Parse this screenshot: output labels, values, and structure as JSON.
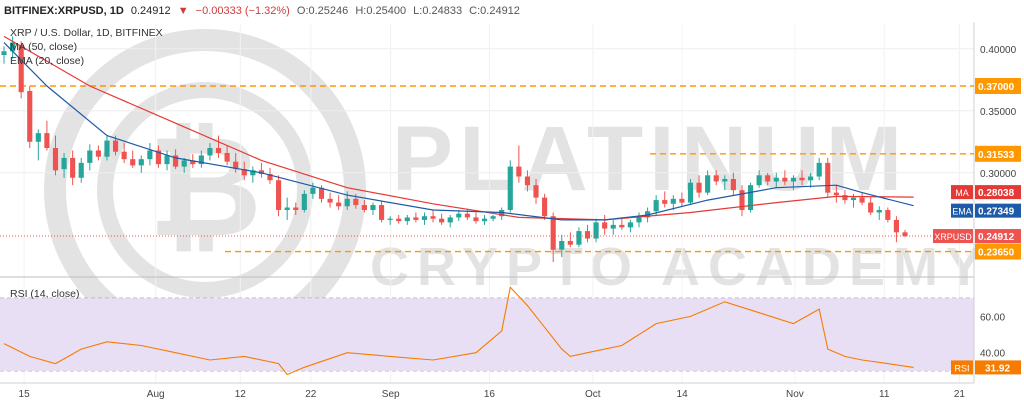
{
  "header": {
    "symbol": "BITFINEX:XRPUSD, 1D",
    "price": "0.24912",
    "arrow": "▼",
    "change": "−0.00333 (−1.32%)",
    "o": "O:0.25246",
    "h": "H:0.25400",
    "l": "L:0.24833",
    "c": "C:0.24912"
  },
  "legend": {
    "title": "XRP / U.S. Dollar, 1D, BITFINEX",
    "ma": "MA (50, close)",
    "ema": "EMA (20, close)",
    "rsi": "RSI (14, close)"
  },
  "watermark": {
    "line1": "PLATINUM",
    "line2": "CRYPTO ACADEMY",
    "logo_glyph": "₿"
  },
  "colors": {
    "up": "#26a69a",
    "down": "#ef5350",
    "ma": "#e53935",
    "ema": "#1e5aa8",
    "rsi": "#f57c00",
    "level": "#ff9800",
    "price_tag": "#ef5350",
    "rsi_band": "#e9dff5"
  },
  "chart_data": [
    {
      "type": "candlestick",
      "title": "XRP / U.S. Dollar, 1D, BITFINEX",
      "ylim": [
        0.22,
        0.42
      ],
      "y_ticks": [
        "0.40000",
        "0.35000",
        "0.30000"
      ],
      "x_ticks": [
        "15",
        "Aug",
        "12",
        "22",
        "Sep",
        "16",
        "Oct",
        "14",
        "Nov",
        "11",
        "21"
      ],
      "candles": [
        [
          0.395,
          0.402,
          0.388,
          0.398
        ],
        [
          0.398,
          0.41,
          0.392,
          0.405
        ],
        [
          0.403,
          0.406,
          0.36,
          0.365
        ],
        [
          0.366,
          0.37,
          0.32,
          0.325
        ],
        [
          0.325,
          0.335,
          0.31,
          0.332
        ],
        [
          0.332,
          0.342,
          0.318,
          0.32
        ],
        [
          0.32,
          0.33,
          0.298,
          0.302
        ],
        [
          0.303,
          0.316,
          0.296,
          0.312
        ],
        [
          0.312,
          0.318,
          0.29,
          0.296
        ],
        [
          0.296,
          0.312,
          0.292,
          0.308
        ],
        [
          0.308,
          0.323,
          0.302,
          0.318
        ],
        [
          0.318,
          0.322,
          0.31,
          0.313
        ],
        [
          0.313,
          0.33,
          0.31,
          0.326
        ],
        [
          0.326,
          0.33,
          0.314,
          0.317
        ],
        [
          0.317,
          0.324,
          0.308,
          0.311
        ],
        [
          0.311,
          0.318,
          0.304,
          0.306
        ],
        [
          0.306,
          0.314,
          0.3,
          0.311
        ],
        [
          0.311,
          0.324,
          0.306,
          0.318
        ],
        [
          0.318,
          0.322,
          0.304,
          0.307
        ],
        [
          0.307,
          0.318,
          0.302,
          0.314
        ],
        [
          0.314,
          0.319,
          0.303,
          0.305
        ],
        [
          0.305,
          0.312,
          0.3,
          0.31
        ],
        [
          0.31,
          0.315,
          0.304,
          0.307
        ],
        [
          0.307,
          0.318,
          0.304,
          0.314
        ],
        [
          0.314,
          0.324,
          0.31,
          0.32
        ],
        [
          0.32,
          0.33,
          0.312,
          0.316
        ],
        [
          0.316,
          0.322,
          0.306,
          0.309
        ],
        [
          0.309,
          0.316,
          0.3,
          0.303
        ],
        [
          0.303,
          0.309,
          0.294,
          0.298
        ],
        [
          0.298,
          0.305,
          0.292,
          0.302
        ],
        [
          0.302,
          0.308,
          0.296,
          0.299
        ],
        [
          0.299,
          0.304,
          0.291,
          0.294
        ],
        [
          0.294,
          0.298,
          0.265,
          0.27
        ],
        [
          0.27,
          0.28,
          0.262,
          0.272
        ],
        [
          0.272,
          0.276,
          0.266,
          0.27
        ],
        [
          0.27,
          0.286,
          0.268,
          0.283
        ],
        [
          0.283,
          0.292,
          0.279,
          0.288
        ],
        [
          0.288,
          0.29,
          0.276,
          0.279
        ],
        [
          0.279,
          0.284,
          0.272,
          0.276
        ],
        [
          0.276,
          0.282,
          0.27,
          0.273
        ],
        [
          0.273,
          0.285,
          0.27,
          0.279
        ],
        [
          0.279,
          0.283,
          0.271,
          0.274
        ],
        [
          0.274,
          0.278,
          0.268,
          0.27
        ],
        [
          0.27,
          0.276,
          0.266,
          0.274
        ],
        [
          0.274,
          0.277,
          0.26,
          0.262
        ],
        [
          0.262,
          0.265,
          0.258,
          0.263
        ],
        [
          0.263,
          0.266,
          0.259,
          0.261
        ],
        [
          0.261,
          0.266,
          0.258,
          0.264
        ],
        [
          0.264,
          0.268,
          0.26,
          0.262
        ],
        [
          0.262,
          0.268,
          0.258,
          0.265
        ],
        [
          0.265,
          0.27,
          0.26,
          0.263
        ],
        [
          0.263,
          0.267,
          0.258,
          0.26
        ],
        [
          0.26,
          0.266,
          0.256,
          0.264
        ],
        [
          0.264,
          0.27,
          0.261,
          0.267
        ],
        [
          0.267,
          0.271,
          0.262,
          0.264
        ],
        [
          0.264,
          0.268,
          0.259,
          0.261
        ],
        [
          0.261,
          0.266,
          0.258,
          0.263
        ],
        [
          0.263,
          0.266,
          0.261,
          0.265
        ],
        [
          0.265,
          0.272,
          0.262,
          0.27
        ],
        [
          0.27,
          0.31,
          0.268,
          0.305
        ],
        [
          0.305,
          0.322,
          0.292,
          0.297
        ],
        [
          0.297,
          0.302,
          0.285,
          0.29
        ],
        [
          0.29,
          0.295,
          0.275,
          0.28
        ],
        [
          0.28,
          0.283,
          0.262,
          0.265
        ],
        [
          0.265,
          0.268,
          0.228,
          0.238
        ],
        [
          0.238,
          0.25,
          0.232,
          0.245
        ],
        [
          0.245,
          0.252,
          0.24,
          0.242
        ],
        [
          0.242,
          0.256,
          0.24,
          0.253
        ],
        [
          0.253,
          0.258,
          0.244,
          0.247
        ],
        [
          0.247,
          0.263,
          0.244,
          0.26
        ],
        [
          0.26,
          0.266,
          0.25,
          0.255
        ],
        [
          0.255,
          0.262,
          0.25,
          0.258
        ],
        [
          0.258,
          0.264,
          0.254,
          0.256
        ],
        [
          0.256,
          0.262,
          0.252,
          0.26
        ],
        [
          0.26,
          0.268,
          0.256,
          0.264
        ],
        [
          0.264,
          0.272,
          0.26,
          0.269
        ],
        [
          0.269,
          0.282,
          0.266,
          0.278
        ],
        [
          0.278,
          0.285,
          0.272,
          0.275
        ],
        [
          0.275,
          0.282,
          0.27,
          0.279
        ],
        [
          0.279,
          0.284,
          0.273,
          0.276
        ],
        [
          0.276,
          0.295,
          0.274,
          0.292
        ],
        [
          0.292,
          0.298,
          0.28,
          0.284
        ],
        [
          0.284,
          0.302,
          0.282,
          0.298
        ],
        [
          0.298,
          0.302,
          0.29,
          0.293
        ],
        [
          0.293,
          0.298,
          0.286,
          0.295
        ],
        [
          0.295,
          0.3,
          0.282,
          0.286
        ],
        [
          0.286,
          0.29,
          0.265,
          0.27
        ],
        [
          0.27,
          0.292,
          0.268,
          0.29
        ],
        [
          0.29,
          0.302,
          0.288,
          0.298
        ],
        [
          0.298,
          0.3,
          0.29,
          0.293
        ],
        [
          0.293,
          0.3,
          0.288,
          0.296
        ],
        [
          0.296,
          0.302,
          0.29,
          0.293
        ],
        [
          0.293,
          0.298,
          0.286,
          0.296
        ],
        [
          0.296,
          0.302,
          0.29,
          0.294
        ],
        [
          0.294,
          0.3,
          0.288,
          0.297
        ],
        [
          0.297,
          0.312,
          0.294,
          0.308
        ],
        [
          0.308,
          0.312,
          0.28,
          0.284
        ],
        [
          0.284,
          0.29,
          0.276,
          0.282
        ],
        [
          0.282,
          0.286,
          0.275,
          0.278
        ],
        [
          0.278,
          0.283,
          0.272,
          0.28
        ],
        [
          0.28,
          0.284,
          0.274,
          0.276
        ],
        [
          0.276,
          0.28,
          0.266,
          0.268
        ],
        [
          0.268,
          0.273,
          0.262,
          0.27
        ],
        [
          0.27,
          0.272,
          0.26,
          0.262
        ],
        [
          0.262,
          0.265,
          0.244,
          0.252
        ],
        [
          0.252,
          0.254,
          0.248,
          0.249
        ]
      ],
      "series": [
        {
          "name": "MA (50, close)",
          "x": [
            0,
            10,
            20,
            30,
            40,
            50,
            60,
            70,
            80,
            90,
            97,
            106
          ],
          "values": [
            0.41,
            0.37,
            0.34,
            0.31,
            0.288,
            0.275,
            0.264,
            0.262,
            0.268,
            0.276,
            0.281,
            0.2804
          ]
        },
        {
          "name": "EMA (20, close)",
          "x": [
            0,
            5,
            12,
            20,
            30,
            40,
            50,
            58,
            65,
            70,
            75,
            82,
            90,
            97,
            100,
            106
          ],
          "values": [
            0.405,
            0.37,
            0.33,
            0.312,
            0.3,
            0.282,
            0.27,
            0.268,
            0.262,
            0.262,
            0.266,
            0.278,
            0.288,
            0.29,
            0.284,
            0.2735
          ]
        }
      ],
      "levels": [
        {
          "label": "0.37000",
          "y": 0.37
        },
        {
          "label": "0.31533",
          "y": 0.31533
        },
        {
          "label": "0.23650",
          "y": 0.2365
        }
      ],
      "price_labels": [
        {
          "name": "MA",
          "value": "0.28038"
        },
        {
          "name": "EMA",
          "value": "0.27349"
        },
        {
          "name": "XRPUSD",
          "value": "0.24912"
        }
      ]
    },
    {
      "type": "line",
      "title": "RSI (14, close)",
      "ylim": [
        25,
        80
      ],
      "y_ticks": [
        "60.00",
        "40.00"
      ],
      "band": [
        30,
        70
      ],
      "series": [
        {
          "name": "RSI (14, close)",
          "x": [
            0,
            3,
            6,
            9,
            12,
            16,
            20,
            24,
            28,
            32,
            33,
            35,
            40,
            45,
            50,
            55,
            58,
            59,
            61,
            63,
            65,
            66,
            68,
            72,
            76,
            80,
            84,
            88,
            92,
            95,
            96,
            98,
            100,
            103,
            106
          ],
          "values": [
            45,
            38,
            34,
            42,
            46,
            44,
            40,
            36,
            38,
            34,
            28,
            32,
            40,
            38,
            36,
            40,
            52,
            76,
            66,
            54,
            42,
            38,
            40,
            44,
            56,
            60,
            68,
            62,
            56,
            64,
            42,
            38,
            36,
            34,
            31.92
          ]
        }
      ],
      "price_labels": [
        {
          "name": "RSI",
          "value": "31.92"
        }
      ]
    }
  ]
}
